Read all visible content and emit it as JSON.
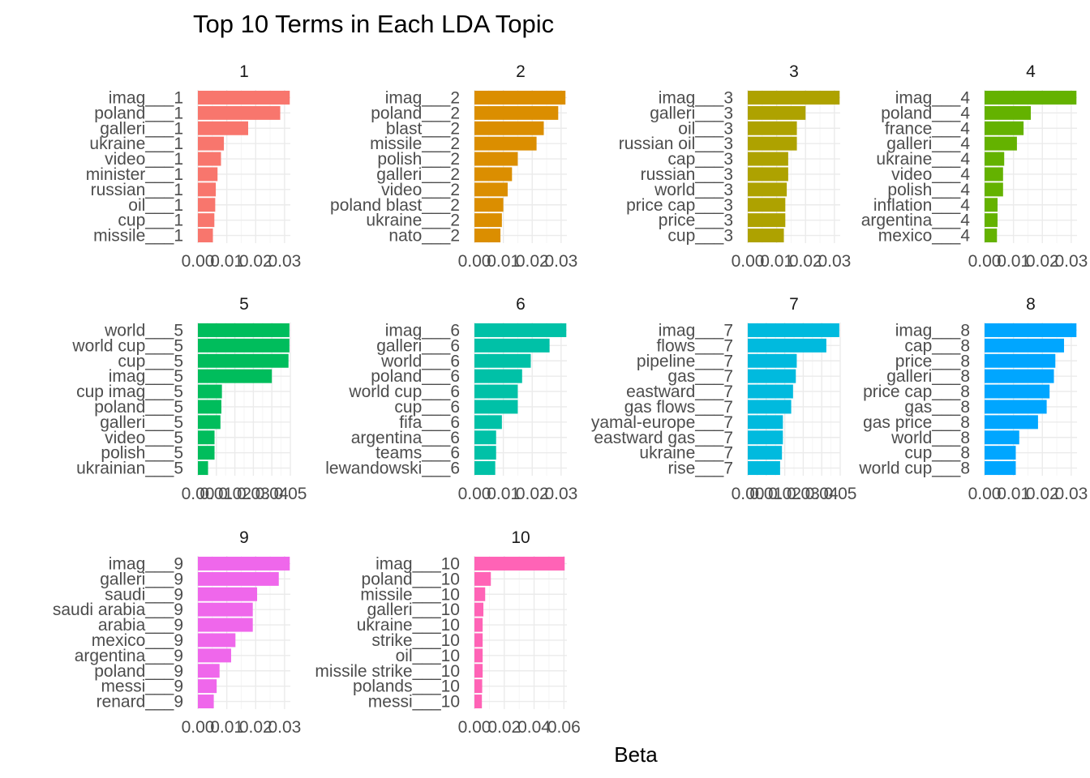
{
  "chart_data": {
    "type": "bar",
    "orientation": "horizontal",
    "title": "Top 10 Terms in Each LDA Topic",
    "xlabel": "Beta",
    "ylabel": "",
    "grid": true,
    "legend": "none",
    "facets": [
      {
        "name": "1",
        "color": "#F8766D",
        "xlim": [
          0,
          0.032
        ],
        "ticks": [
          0,
          0.01,
          0.02,
          0.03
        ],
        "tick_labels": [
          "0.00",
          "0.01",
          "0.02",
          "0.03"
        ],
        "terms": [
          "imag___1",
          "poland___1",
          "galleri___1",
          "ukraine___1",
          "video___1",
          "minister___1",
          "russian___1",
          "oil___1",
          "cup___1",
          "missile___1"
        ],
        "values": [
          0.0318,
          0.0285,
          0.0174,
          0.009,
          0.008,
          0.0068,
          0.0062,
          0.006,
          0.0057,
          0.0052
        ]
      },
      {
        "name": "2",
        "color": "#DB8E00",
        "xlim": [
          0,
          0.032
        ],
        "ticks": [
          0,
          0.01,
          0.02,
          0.03
        ],
        "tick_labels": [
          "0.00",
          "0.01",
          "0.02",
          "0.03"
        ],
        "terms": [
          "imag___2",
          "poland___2",
          "blast___2",
          "missile___2",
          "polish___2",
          "galleri___2",
          "video___2",
          "poland blast___2",
          "ukraine___2",
          "nato___2"
        ],
        "values": [
          0.0315,
          0.029,
          0.024,
          0.0215,
          0.015,
          0.013,
          0.0115,
          0.01,
          0.0095,
          0.009
        ]
      },
      {
        "name": "3",
        "color": "#AEA200",
        "xlim": [
          0,
          0.032
        ],
        "ticks": [
          0,
          0.01,
          0.02,
          0.03
        ],
        "tick_labels": [
          "0.00",
          "0.01",
          "0.02",
          "0.03"
        ],
        "terms": [
          "imag___3",
          "galleri___3",
          "oil___3",
          "russian oil___3",
          "cap___3",
          "russian___3",
          "world___3",
          "price cap___3",
          "price___3",
          "cup___3"
        ],
        "values": [
          0.0318,
          0.02,
          0.017,
          0.017,
          0.014,
          0.014,
          0.0135,
          0.013,
          0.013,
          0.0125
        ]
      },
      {
        "name": "4",
        "color": "#64B200",
        "xlim": [
          0,
          0.032
        ],
        "ticks": [
          0,
          0.01,
          0.02,
          0.03
        ],
        "tick_labels": [
          "0.00",
          "0.01",
          "0.02",
          "0.03"
        ],
        "terms": [
          "imag___4",
          "poland___4",
          "france___4",
          "galleri___4",
          "ukraine___4",
          "video___4",
          "polish___4",
          "inflation___4",
          "argentina___4",
          "mexico___4"
        ],
        "values": [
          0.0318,
          0.016,
          0.0135,
          0.0112,
          0.0068,
          0.0064,
          0.0064,
          0.0045,
          0.0045,
          0.0043
        ]
      },
      {
        "name": "5",
        "color": "#00BD5C",
        "xlim": [
          0,
          0.05
        ],
        "ticks": [
          0,
          0.01,
          0.02,
          0.03,
          0.04,
          0.05
        ],
        "tick_labels": [
          "0.00",
          "0.01",
          "0.02",
          "0.03",
          "0.04",
          "0.05"
        ],
        "terms": [
          "world___5",
          "world cup___5",
          "cup___5",
          "imag___5",
          "cup imag___5",
          "poland___5",
          "galleri___5",
          "video___5",
          "polish___5",
          "ukrainian___5"
        ],
        "values": [
          0.0495,
          0.0495,
          0.049,
          0.04,
          0.013,
          0.0127,
          0.0122,
          0.009,
          0.009,
          0.0055
        ]
      },
      {
        "name": "6",
        "color": "#00C1A7",
        "xlim": [
          0,
          0.032
        ],
        "ticks": [
          0,
          0.01,
          0.02,
          0.03
        ],
        "tick_labels": [
          "0.00",
          "0.01",
          "0.02",
          "0.03"
        ],
        "terms": [
          "imag___6",
          "galleri___6",
          "world___6",
          "poland___6",
          "world cup___6",
          "cup___6",
          "fifa___6",
          "argentina___6",
          "teams___6",
          "lewandowski___6"
        ],
        "values": [
          0.0318,
          0.026,
          0.0195,
          0.0165,
          0.015,
          0.015,
          0.0095,
          0.0075,
          0.0075,
          0.0072
        ]
      },
      {
        "name": "7",
        "color": "#00BADE",
        "xlim": [
          0,
          0.05
        ],
        "ticks": [
          0,
          0.01,
          0.02,
          0.03,
          0.04,
          0.05
        ],
        "tick_labels": [
          "0.00",
          "0.01",
          "0.02",
          "0.03",
          "0.04",
          "0.05"
        ],
        "terms": [
          "imag___7",
          "flows___7",
          "pipeline___7",
          "gas___7",
          "eastward___7",
          "gas flows___7",
          "yamal-europe___7",
          "eastward gas___7",
          "ukraine___7",
          "rise___7"
        ],
        "values": [
          0.0495,
          0.0425,
          0.0265,
          0.026,
          0.0245,
          0.0235,
          0.019,
          0.019,
          0.0185,
          0.0175
        ]
      },
      {
        "name": "8",
        "color": "#00A6FF",
        "xlim": [
          0,
          0.032
        ],
        "ticks": [
          0,
          0.01,
          0.02,
          0.03
        ],
        "tick_labels": [
          "0.00",
          "0.01",
          "0.02",
          "0.03"
        ],
        "terms": [
          "imag___8",
          "cap___8",
          "price___8",
          "galleri___8",
          "price cap___8",
          "gas___8",
          "gas price___8",
          "world___8",
          "cup___8",
          "world cup___8"
        ],
        "values": [
          0.0318,
          0.0275,
          0.0245,
          0.024,
          0.0225,
          0.0215,
          0.0185,
          0.012,
          0.0108,
          0.0108
        ]
      },
      {
        "name": "9",
        "color": "#EF67EB",
        "xlim": [
          0,
          0.032
        ],
        "ticks": [
          0,
          0.01,
          0.02,
          0.03
        ],
        "tick_labels": [
          "0.00",
          "0.01",
          "0.02",
          "0.03"
        ],
        "terms": [
          "imag___9",
          "galleri___9",
          "saudi___9",
          "saudi arabia___9",
          "arabia___9",
          "mexico___9",
          "argentina___9",
          "poland___9",
          "messi___9",
          "renard___9"
        ],
        "values": [
          0.0318,
          0.028,
          0.0205,
          0.019,
          0.019,
          0.013,
          0.0115,
          0.0075,
          0.0065,
          0.0055
        ]
      },
      {
        "name": "10",
        "color": "#FF63B6",
        "xlim": [
          0,
          0.062
        ],
        "ticks": [
          0,
          0.02,
          0.04,
          0.06
        ],
        "tick_labels": [
          "0.00",
          "0.02",
          "0.04",
          "0.06"
        ],
        "terms": [
          "imag___10",
          "poland___10",
          "missile___10",
          "galleri___10",
          "ukraine___10",
          "strike___10",
          "oil___10",
          "missile strike___10",
          "polands___10",
          "messi___10"
        ],
        "values": [
          0.0605,
          0.011,
          0.0072,
          0.006,
          0.0055,
          0.0055,
          0.0055,
          0.0055,
          0.0052,
          0.005
        ]
      }
    ]
  }
}
